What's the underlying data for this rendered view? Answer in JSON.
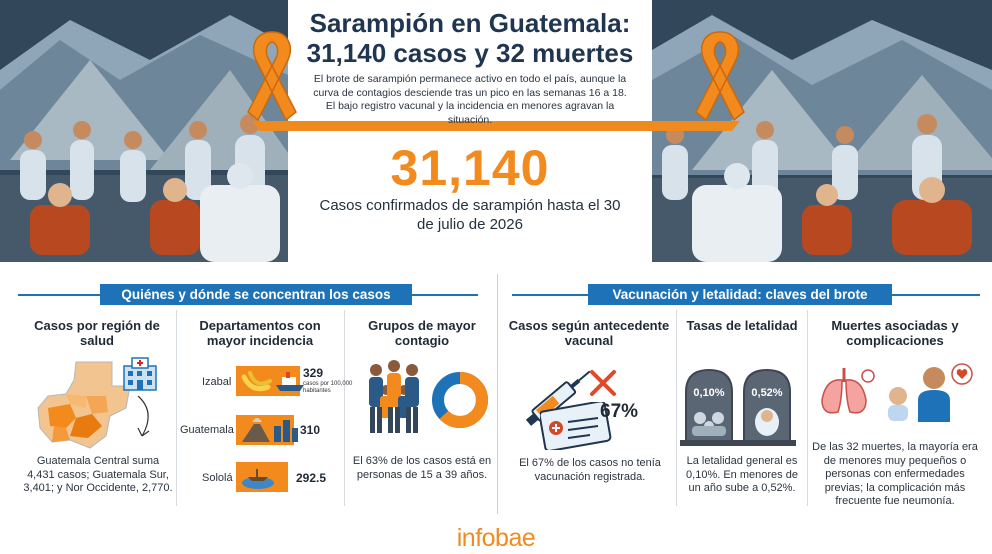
{
  "header": {
    "title_line1": "Sarampión en Guatemala:",
    "title_line2": "31,140 casos y 32 muertes",
    "subtitle": "El brote de sarampión permanece activo en todo el país, aunque la curva de contagios desciende tras un pico en las semanas 16 a 18. El bajo registro vacunal y la incidencia en menores agravan la situación.",
    "big_number": "31,140",
    "big_caption": "Casos confirmados de sarampión hasta el 30 de julio de 2026"
  },
  "section_left": {
    "heading": "Quiénes y dónde se concentran los casos",
    "region": {
      "title": "Casos por región de salud",
      "text": "Guatemala Central suma 4,431 casos; Guatemala Sur, 3,401; y Nor Occidente, 2,770."
    },
    "departments": {
      "title": "Departamentos con mayor incidencia",
      "unit": "casos por 100,000 habitantes",
      "items": [
        {
          "name": "Izabal",
          "value": "329",
          "level": 329
        },
        {
          "name": "Guatemala",
          "value": "310",
          "level": 310
        },
        {
          "name": "Sololá",
          "value": "292.5",
          "level": 292.5
        }
      ]
    },
    "groups": {
      "title": "Grupos de mayor contagio",
      "share": 63,
      "text": "El 63% de los casos está en personas de 15 a 39 años."
    }
  },
  "section_right": {
    "heading": "Vacunación y letalidad: claves del brote",
    "vaccine": {
      "title": "Casos según antecedente vacunal",
      "percent": "67%",
      "text": "El 67% de los casos no tenía vacunación registrada."
    },
    "lethality": {
      "title": "Tasas de letalidad",
      "general": "0,10%",
      "infants": "0,52%",
      "text": "La letalidad general es 0,10%. En menores de un año sube a 0,52%."
    },
    "deaths": {
      "title": "Muertes asociadas y complicaciones",
      "text": "De las 32 muertes, la mayoría era de menores muy pequeños o personas con enfermedades previas; la complicación más frecuente fue neumonía."
    }
  },
  "footer": {
    "brand": "infobae"
  },
  "colors": {
    "accent": "#f28a1e",
    "blue": "#1e73b8",
    "navy": "#1f3550",
    "donut_rest": "#1e73b8"
  },
  "icons": [
    "awareness-ribbon-icon",
    "hospital-icon",
    "banana-icon",
    "ship-icon",
    "volcano-icon",
    "buildings-icon",
    "boat-icon",
    "lake-icon",
    "family-icon",
    "donut-chart",
    "syringe-icon",
    "vaccination-card-icon",
    "cross-mark-icon",
    "tombstone-icon",
    "lungs-icon",
    "baby-icon",
    "parent-icon",
    "heart-icon"
  ]
}
